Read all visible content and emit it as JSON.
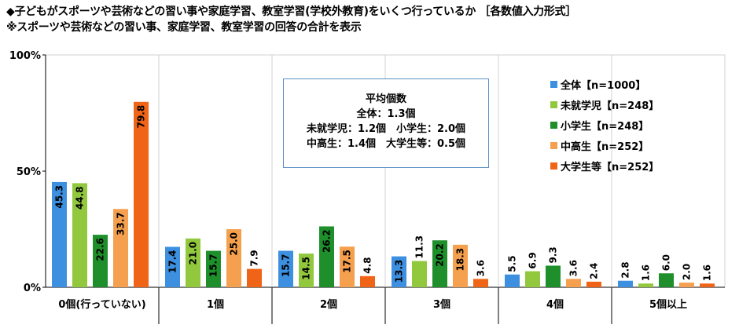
{
  "title": {
    "line1": "◆子どもがスポーツや芸術などの習い事や家庭学習、教室学習(学校外教育)をいくつ行っているか ［各数値入力形式］",
    "line2": "※スポーツや芸術などの習い事、家庭学習、教室学習の回答の合計を表示"
  },
  "average_box": {
    "heading": "平均個数",
    "lines": [
      "全体：1.3個",
      "未就学児：1.2個　小学生：2.0個",
      "中高生：1.4個　大学生等：0.5個"
    ]
  },
  "colors": {
    "全体": "#3d8fe0",
    "未就学児": "#92c83e",
    "小学生": "#1e8f2a",
    "中高生": "#f5a04e",
    "大学生等": "#f06418"
  },
  "chart_data": {
    "type": "bar",
    "categories": [
      "0個(行っていない)",
      "1個",
      "2個",
      "3個",
      "4個",
      "5個以上"
    ],
    "series": [
      {
        "name": "全体【n=1000】",
        "color": "#3d8fe0",
        "values": [
          45.3,
          17.4,
          15.7,
          13.3,
          5.5,
          2.8
        ]
      },
      {
        "name": "未就学児【n=248】",
        "color": "#92c83e",
        "values": [
          44.8,
          21.0,
          14.5,
          11.3,
          6.9,
          1.6
        ]
      },
      {
        "name": "小学生【n=248】",
        "color": "#1e8f2a",
        "values": [
          22.6,
          15.7,
          26.2,
          20.2,
          9.3,
          6.0
        ]
      },
      {
        "name": "中高生【n=252】",
        "color": "#f5a04e",
        "values": [
          33.7,
          25.0,
          17.5,
          18.3,
          3.6,
          2.0
        ]
      },
      {
        "name": "大学生等【n=252】",
        "color": "#f06418",
        "values": [
          79.8,
          7.9,
          4.8,
          3.6,
          2.4,
          1.6
        ]
      }
    ],
    "ylim": [
      0,
      100
    ],
    "yticks": [
      "0%",
      "50%",
      "100%"
    ],
    "ytick_values": [
      0,
      50,
      100
    ],
    "legend_position": "right",
    "grid": false
  }
}
